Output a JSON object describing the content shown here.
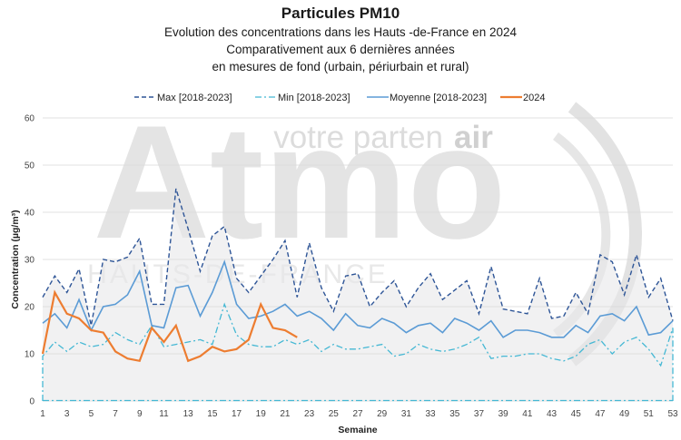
{
  "header": {
    "title": "Particules PM10",
    "subtitle_lines": [
      "Evolution des concentrations dans les Hauts -de-France en 2024",
      "Comparativement aux 6 dernières années",
      "en mesures de fond (urbain, périurbain et rural)"
    ]
  },
  "watermark": {
    "big": "Atmo",
    "tagline_a": "votre parten",
    "tagline_b": "air",
    "region": "HAUTS-DE-FRANCE"
  },
  "colors": {
    "max": "#2e5597",
    "min": "#45b8d4",
    "moyenne": "#5b9bd5",
    "y2024": "#ed7d31",
    "band": "#e7e7ea",
    "grid": "#d9d9d9"
  },
  "chart_data": {
    "type": "line",
    "xlabel": "Semaine",
    "ylabel": "Concentration (µg/m³)",
    "xlim": [
      1,
      53
    ],
    "ylim": [
      0,
      60
    ],
    "x_ticks": [
      1,
      3,
      5,
      7,
      9,
      11,
      13,
      15,
      17,
      19,
      21,
      23,
      25,
      27,
      29,
      31,
      33,
      35,
      37,
      39,
      41,
      43,
      45,
      47,
      49,
      51,
      53
    ],
    "y_ticks": [
      0,
      10,
      20,
      30,
      40,
      50,
      60
    ],
    "grid": "horizontal",
    "legend_position": "top",
    "weeks": [
      1,
      2,
      3,
      4,
      5,
      6,
      7,
      8,
      9,
      10,
      11,
      12,
      13,
      14,
      15,
      16,
      17,
      18,
      19,
      20,
      21,
      22,
      23,
      24,
      25,
      26,
      27,
      28,
      29,
      30,
      31,
      32,
      33,
      34,
      35,
      36,
      37,
      38,
      39,
      40,
      41,
      42,
      43,
      44,
      45,
      46,
      47,
      48,
      49,
      50,
      51,
      52,
      53
    ],
    "series": [
      {
        "name": "Max [2018-2023]",
        "style": "dashed",
        "values": [
          22,
          26.5,
          23,
          28,
          16,
          30,
          29.5,
          30.5,
          34.5,
          20.5,
          20.5,
          45,
          36.5,
          27.5,
          35,
          37,
          26,
          23,
          26.5,
          30,
          34,
          22,
          33.5,
          24,
          19,
          26.5,
          27,
          20,
          23,
          25.5,
          20,
          24,
          27,
          21.5,
          23.5,
          25.5,
          18.5,
          28.5,
          19.5,
          19,
          18.5,
          26,
          17.5,
          18,
          23,
          18.5,
          31,
          29.5,
          22.5,
          31,
          22,
          26,
          17
        ]
      },
      {
        "name": "Min [2018-2023]",
        "style": "dashdot",
        "values": [
          9.5,
          12.5,
          10.5,
          12.5,
          11.5,
          12,
          14.5,
          13,
          12,
          16,
          11.5,
          12,
          12.5,
          13,
          12,
          20.5,
          14,
          12,
          11.5,
          11.5,
          13,
          12,
          13,
          10.5,
          12,
          11,
          11,
          11.5,
          12,
          9.5,
          10,
          12,
          11,
          10.5,
          11,
          12,
          13.5,
          9,
          9.5,
          9.5,
          10,
          10,
          9,
          8.5,
          9.5,
          12,
          13,
          10,
          12.5,
          13.5,
          11,
          7.5,
          15.5
        ]
      },
      {
        "name": "Moyenne [2018-2023]",
        "style": "solid",
        "values": [
          16.5,
          18.5,
          15.5,
          21.5,
          15,
          20,
          20.5,
          22.5,
          27.5,
          16,
          15.5,
          24,
          24.5,
          18,
          23,
          29.5,
          20.5,
          17.5,
          18,
          19,
          20.5,
          18,
          19,
          17.5,
          15,
          18.5,
          16,
          15.5,
          17.5,
          16.5,
          14.5,
          16,
          16.5,
          14.5,
          17.5,
          16.5,
          15,
          17,
          13.5,
          15,
          15,
          14.5,
          13.5,
          13.5,
          16,
          14.5,
          18,
          18.5,
          17,
          20,
          14,
          14.5,
          17
        ]
      },
      {
        "name": "2024",
        "style": "solid-bold",
        "values": [
          10,
          23,
          18.5,
          17.5,
          15,
          14.5,
          10.5,
          9,
          8.5,
          15.5,
          12.5,
          16,
          8.5,
          9.5,
          11.5,
          10.5,
          11,
          13,
          20.5,
          15.5,
          15,
          13.5
        ]
      }
    ],
    "band_lower": 0,
    "band_upper": "Max [2018-2023]"
  }
}
